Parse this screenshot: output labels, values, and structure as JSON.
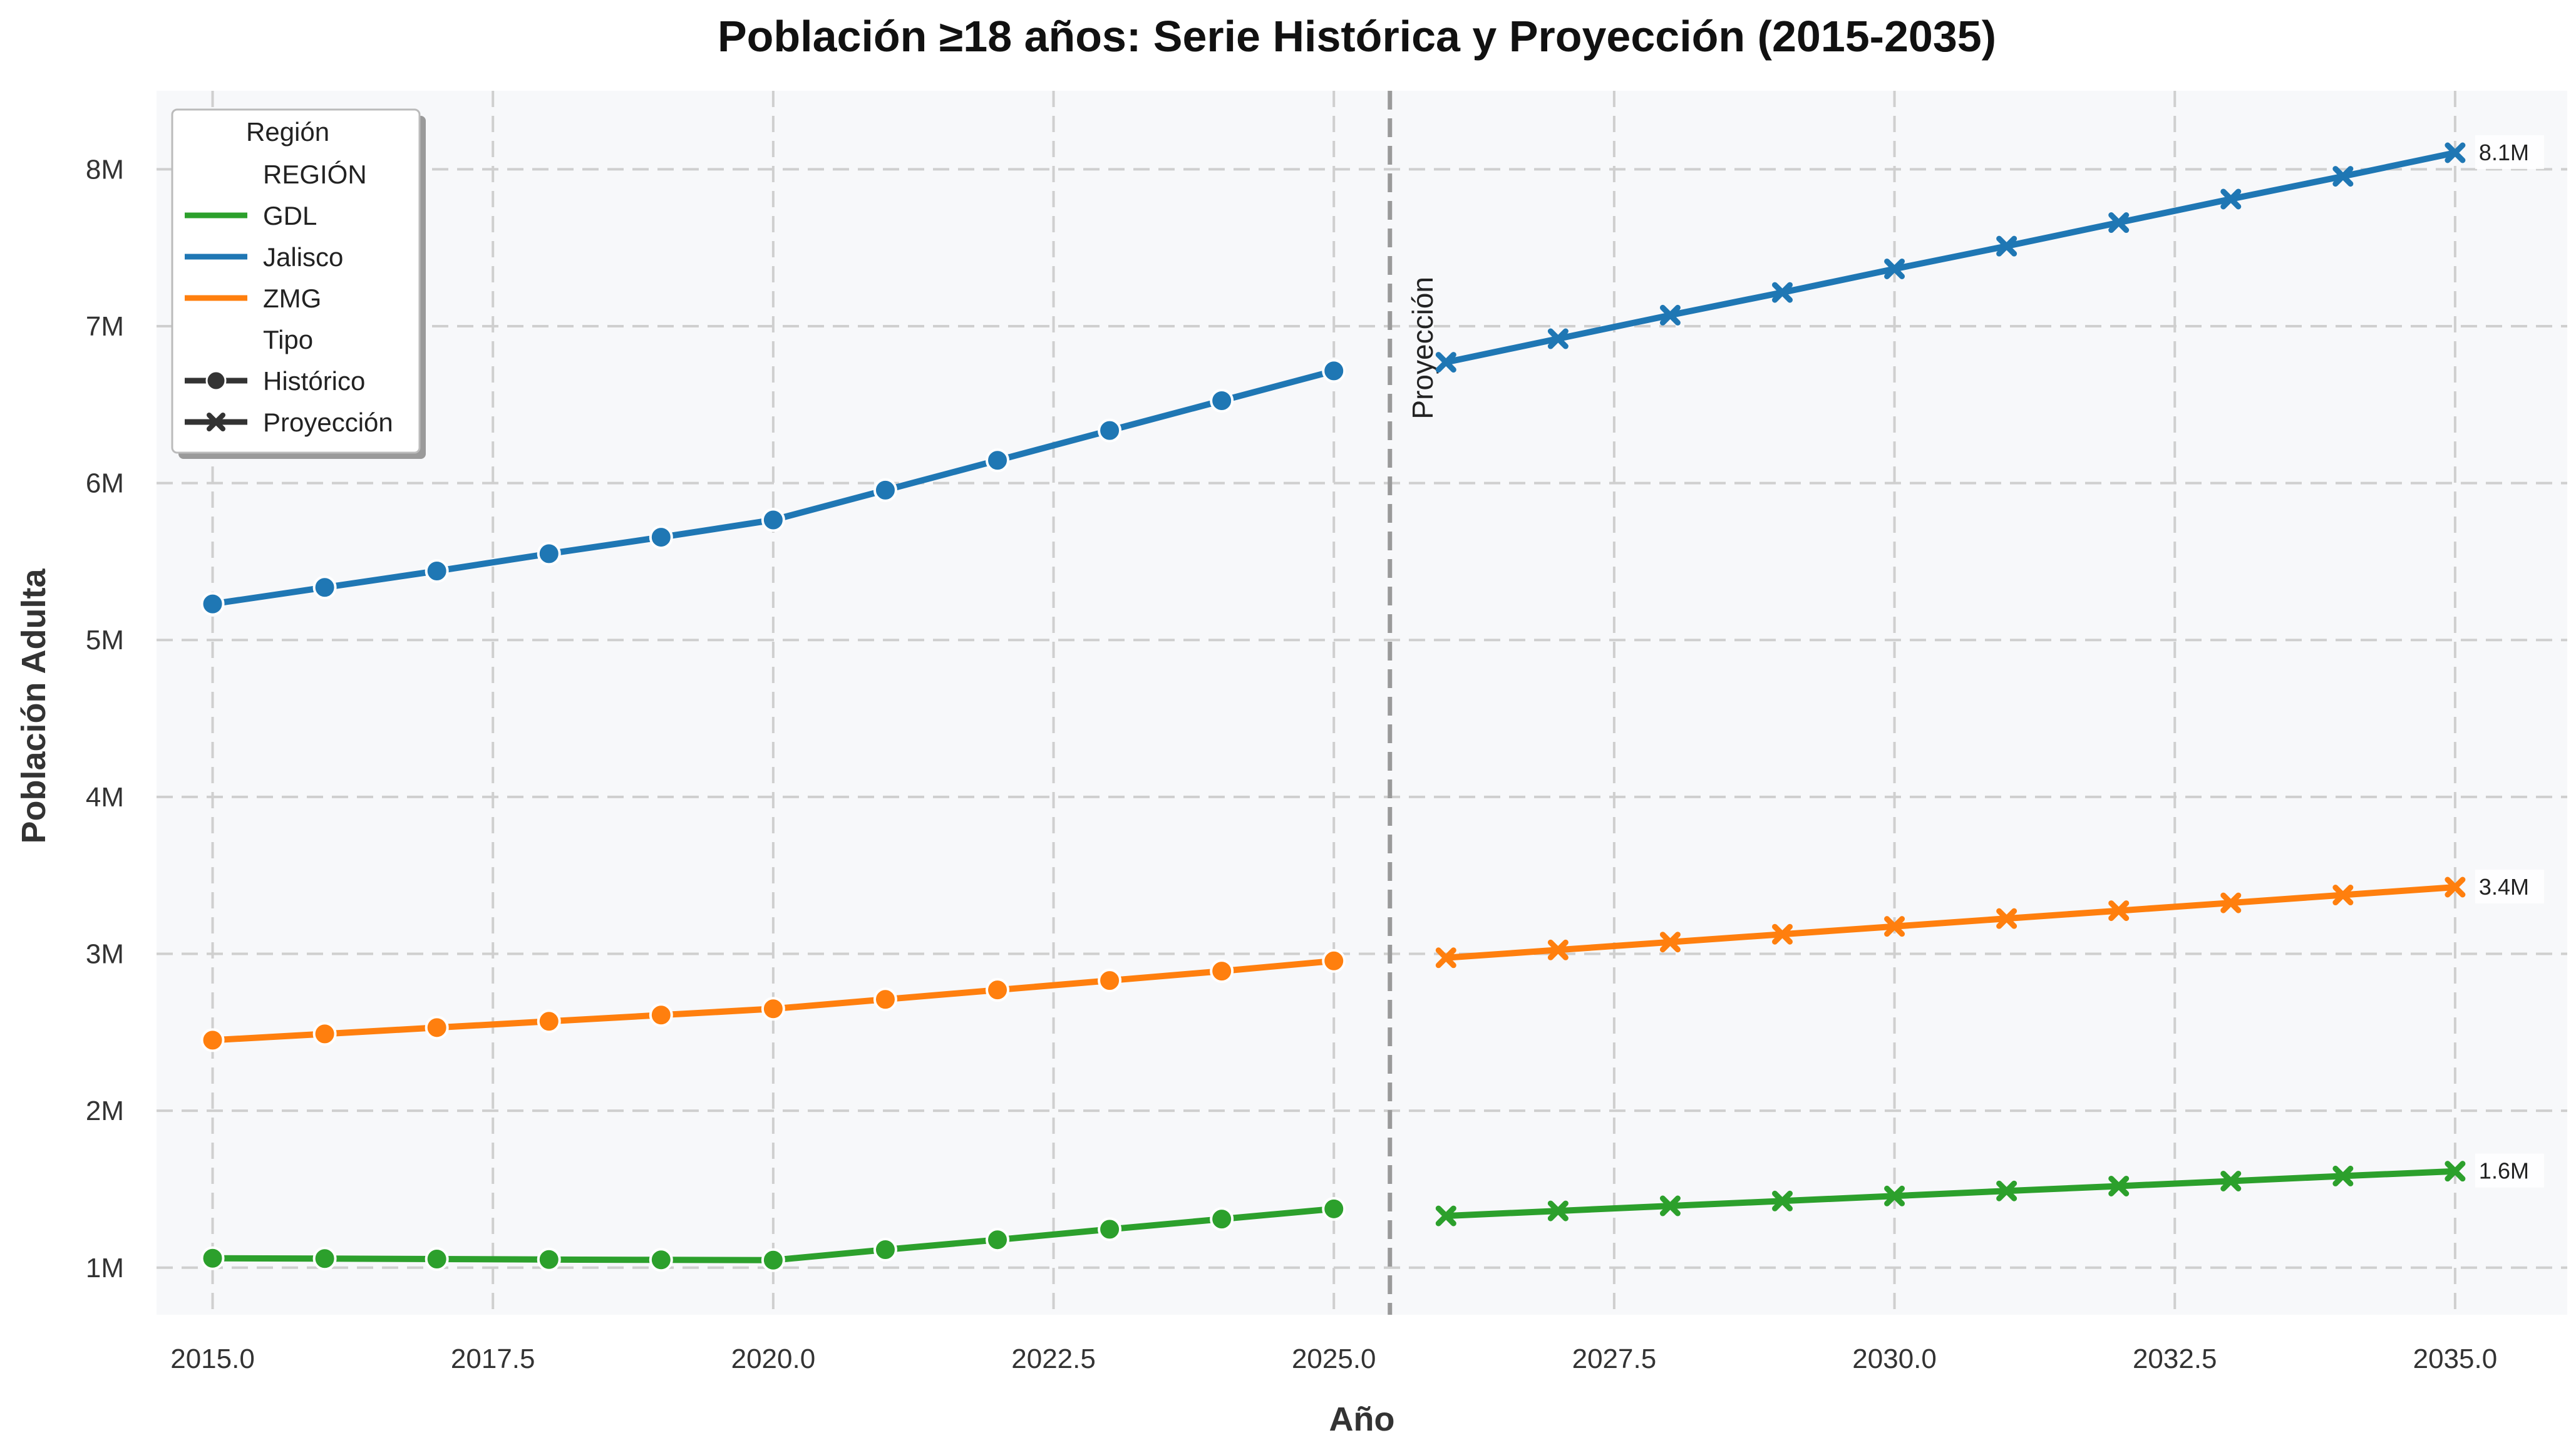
{
  "chart_data": {
    "type": "line",
    "title": "Población ≥18 años: Serie Histórica y Proyección (2015-2035)",
    "xlabel": "Año",
    "ylabel": "Población Adulta",
    "xlim": [
      2014.5,
      2036.0
    ],
    "ylim": [
      700000,
      8500000
    ],
    "x_ticks": [
      2015.0,
      2017.5,
      2020.0,
      2022.5,
      2025.0,
      2027.5,
      2030.0,
      2032.5,
      2035.0
    ],
    "x_tick_labels": [
      "2015.0",
      "2017.5",
      "2020.0",
      "2022.5",
      "2025.0",
      "2027.5",
      "2030.0",
      "2032.5",
      "2035.0"
    ],
    "y_ticks": [
      1000000,
      2000000,
      3000000,
      4000000,
      5000000,
      6000000,
      7000000,
      8000000
    ],
    "y_tick_labels": [
      "1M",
      "2M",
      "3M",
      "4M",
      "5M",
      "6M",
      "7M",
      "8M"
    ],
    "grid": true,
    "projection_line": {
      "x": 2025.5,
      "label": "Proyección"
    },
    "legend": {
      "placement": "upper-left",
      "title": "Región",
      "entries": [
        {
          "label": "REGIÓN",
          "kind": "header"
        },
        {
          "label": "GDL",
          "kind": "color",
          "color": "#2ca02c"
        },
        {
          "label": "Jalisco",
          "kind": "color",
          "color": "#1f77b4"
        },
        {
          "label": "ZMG",
          "kind": "color",
          "color": "#ff7f0e"
        },
        {
          "label": "Tipo",
          "kind": "header"
        },
        {
          "label": "Histórico",
          "kind": "marker",
          "marker": "circle"
        },
        {
          "label": "Proyección",
          "kind": "marker",
          "marker": "x"
        }
      ]
    },
    "series": [
      {
        "name": "Jalisco",
        "color": "#1f77b4",
        "historical": {
          "x": [
            2015,
            2016,
            2017,
            2018,
            2019,
            2020,
            2021,
            2022,
            2023,
            2024,
            2025
          ],
          "y": [
            5230000,
            5335000,
            5440000,
            5550000,
            5655000,
            5765000,
            5955000,
            6145000,
            6335000,
            6525000,
            6715000
          ]
        },
        "projection": {
          "x": [
            2026,
            2027,
            2028,
            2029,
            2030,
            2031,
            2032,
            2033,
            2034,
            2035
          ],
          "y": [
            6770000,
            6920000,
            7070000,
            7215000,
            7365000,
            7510000,
            7660000,
            7810000,
            7955000,
            8105000
          ]
        },
        "end_label": "8.1M"
      },
      {
        "name": "ZMG",
        "color": "#ff7f0e",
        "historical": {
          "x": [
            2015,
            2016,
            2017,
            2018,
            2019,
            2020,
            2021,
            2022,
            2023,
            2024,
            2025
          ],
          "y": [
            2450000,
            2490000,
            2530000,
            2570000,
            2610000,
            2650000,
            2710000,
            2770000,
            2830000,
            2890000,
            2955000
          ]
        },
        "projection": {
          "x": [
            2026,
            2027,
            2028,
            2029,
            2030,
            2031,
            2032,
            2033,
            2034,
            2035
          ],
          "y": [
            2975000,
            3025000,
            3075000,
            3125000,
            3175000,
            3225000,
            3275000,
            3325000,
            3375000,
            3425000
          ]
        },
        "end_label": "3.4M"
      },
      {
        "name": "GDL",
        "color": "#2ca02c",
        "historical": {
          "x": [
            2015,
            2016,
            2017,
            2018,
            2019,
            2020,
            2021,
            2022,
            2023,
            2024,
            2025
          ],
          "y": [
            1060000,
            1058000,
            1055000,
            1052000,
            1050000,
            1048000,
            1115000,
            1178000,
            1245000,
            1310000,
            1375000
          ]
        },
        "projection": {
          "x": [
            2026,
            2027,
            2028,
            2029,
            2030,
            2031,
            2032,
            2033,
            2034,
            2035
          ],
          "y": [
            1330000,
            1362000,
            1394000,
            1425000,
            1457000,
            1489000,
            1520000,
            1552000,
            1584000,
            1615000
          ]
        },
        "end_label": "1.6M"
      }
    ]
  }
}
